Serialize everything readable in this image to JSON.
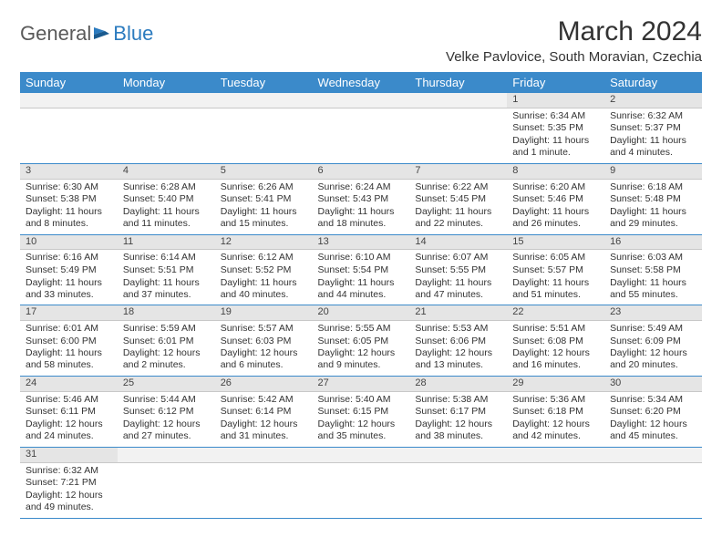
{
  "logo": {
    "part1": "General",
    "part2": "Blue"
  },
  "title": "March 2024",
  "location": "Velke Pavlovice, South Moravian, Czechia",
  "colors": {
    "header_bg": "#3b8aca",
    "header_text": "#ffffff",
    "daynum_bg": "#e5e5e5",
    "border": "#3b8aca",
    "text": "#333333",
    "logo_gray": "#5a5a5a",
    "logo_blue": "#2b7bbf"
  },
  "day_headers": [
    "Sunday",
    "Monday",
    "Tuesday",
    "Wednesday",
    "Thursday",
    "Friday",
    "Saturday"
  ],
  "weeks": [
    [
      null,
      null,
      null,
      null,
      null,
      {
        "n": "1",
        "sunrise": "6:34 AM",
        "sunset": "5:35 PM",
        "daylight": "11 hours and 1 minute."
      },
      {
        "n": "2",
        "sunrise": "6:32 AM",
        "sunset": "5:37 PM",
        "daylight": "11 hours and 4 minutes."
      }
    ],
    [
      {
        "n": "3",
        "sunrise": "6:30 AM",
        "sunset": "5:38 PM",
        "daylight": "11 hours and 8 minutes."
      },
      {
        "n": "4",
        "sunrise": "6:28 AM",
        "sunset": "5:40 PM",
        "daylight": "11 hours and 11 minutes."
      },
      {
        "n": "5",
        "sunrise": "6:26 AM",
        "sunset": "5:41 PM",
        "daylight": "11 hours and 15 minutes."
      },
      {
        "n": "6",
        "sunrise": "6:24 AM",
        "sunset": "5:43 PM",
        "daylight": "11 hours and 18 minutes."
      },
      {
        "n": "7",
        "sunrise": "6:22 AM",
        "sunset": "5:45 PM",
        "daylight": "11 hours and 22 minutes."
      },
      {
        "n": "8",
        "sunrise": "6:20 AM",
        "sunset": "5:46 PM",
        "daylight": "11 hours and 26 minutes."
      },
      {
        "n": "9",
        "sunrise": "6:18 AM",
        "sunset": "5:48 PM",
        "daylight": "11 hours and 29 minutes."
      }
    ],
    [
      {
        "n": "10",
        "sunrise": "6:16 AM",
        "sunset": "5:49 PM",
        "daylight": "11 hours and 33 minutes."
      },
      {
        "n": "11",
        "sunrise": "6:14 AM",
        "sunset": "5:51 PM",
        "daylight": "11 hours and 37 minutes."
      },
      {
        "n": "12",
        "sunrise": "6:12 AM",
        "sunset": "5:52 PM",
        "daylight": "11 hours and 40 minutes."
      },
      {
        "n": "13",
        "sunrise": "6:10 AM",
        "sunset": "5:54 PM",
        "daylight": "11 hours and 44 minutes."
      },
      {
        "n": "14",
        "sunrise": "6:07 AM",
        "sunset": "5:55 PM",
        "daylight": "11 hours and 47 minutes."
      },
      {
        "n": "15",
        "sunrise": "6:05 AM",
        "sunset": "5:57 PM",
        "daylight": "11 hours and 51 minutes."
      },
      {
        "n": "16",
        "sunrise": "6:03 AM",
        "sunset": "5:58 PM",
        "daylight": "11 hours and 55 minutes."
      }
    ],
    [
      {
        "n": "17",
        "sunrise": "6:01 AM",
        "sunset": "6:00 PM",
        "daylight": "11 hours and 58 minutes."
      },
      {
        "n": "18",
        "sunrise": "5:59 AM",
        "sunset": "6:01 PM",
        "daylight": "12 hours and 2 minutes."
      },
      {
        "n": "19",
        "sunrise": "5:57 AM",
        "sunset": "6:03 PM",
        "daylight": "12 hours and 6 minutes."
      },
      {
        "n": "20",
        "sunrise": "5:55 AM",
        "sunset": "6:05 PM",
        "daylight": "12 hours and 9 minutes."
      },
      {
        "n": "21",
        "sunrise": "5:53 AM",
        "sunset": "6:06 PM",
        "daylight": "12 hours and 13 minutes."
      },
      {
        "n": "22",
        "sunrise": "5:51 AM",
        "sunset": "6:08 PM",
        "daylight": "12 hours and 16 minutes."
      },
      {
        "n": "23",
        "sunrise": "5:49 AM",
        "sunset": "6:09 PM",
        "daylight": "12 hours and 20 minutes."
      }
    ],
    [
      {
        "n": "24",
        "sunrise": "5:46 AM",
        "sunset": "6:11 PM",
        "daylight": "12 hours and 24 minutes."
      },
      {
        "n": "25",
        "sunrise": "5:44 AM",
        "sunset": "6:12 PM",
        "daylight": "12 hours and 27 minutes."
      },
      {
        "n": "26",
        "sunrise": "5:42 AM",
        "sunset": "6:14 PM",
        "daylight": "12 hours and 31 minutes."
      },
      {
        "n": "27",
        "sunrise": "5:40 AM",
        "sunset": "6:15 PM",
        "daylight": "12 hours and 35 minutes."
      },
      {
        "n": "28",
        "sunrise": "5:38 AM",
        "sunset": "6:17 PM",
        "daylight": "12 hours and 38 minutes."
      },
      {
        "n": "29",
        "sunrise": "5:36 AM",
        "sunset": "6:18 PM",
        "daylight": "12 hours and 42 minutes."
      },
      {
        "n": "30",
        "sunrise": "5:34 AM",
        "sunset": "6:20 PM",
        "daylight": "12 hours and 45 minutes."
      }
    ],
    [
      {
        "n": "31",
        "sunrise": "6:32 AM",
        "sunset": "7:21 PM",
        "daylight": "12 hours and 49 minutes."
      },
      null,
      null,
      null,
      null,
      null,
      null
    ]
  ],
  "labels": {
    "sunrise": "Sunrise:",
    "sunset": "Sunset:",
    "daylight": "Daylight:"
  }
}
